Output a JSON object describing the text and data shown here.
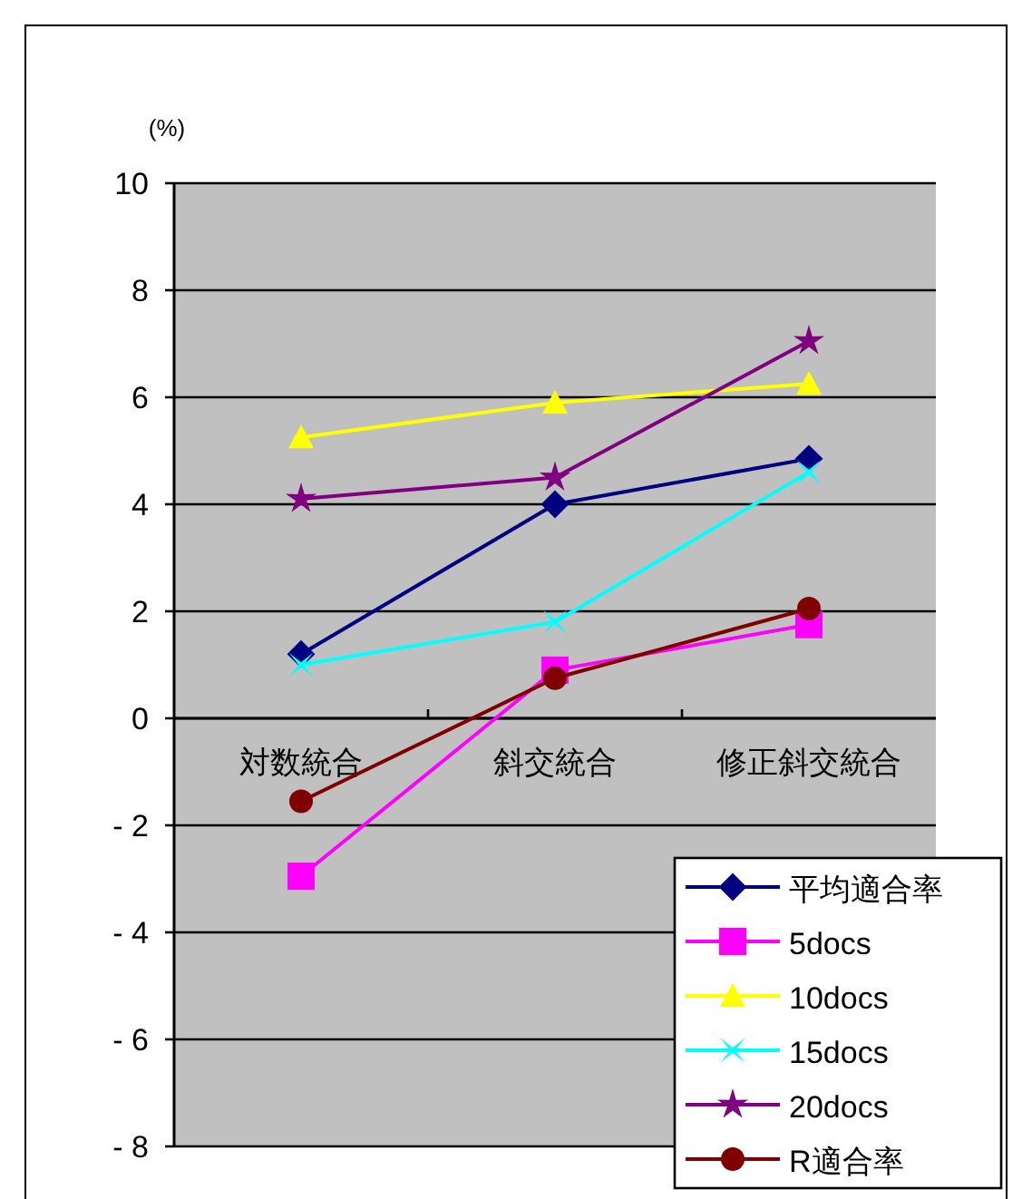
{
  "chart_data": {
    "type": "line",
    "ylabel": "(%)",
    "categories": [
      "対数統合",
      "斜交統合",
      "修正斜交統合"
    ],
    "ylim": [
      -8,
      10
    ],
    "yticks": [
      {
        "value": -8,
        "label": "- 8"
      },
      {
        "value": -6,
        "label": "- 6"
      },
      {
        "value": -4,
        "label": "- 4"
      },
      {
        "value": -2,
        "label": "- 2"
      },
      0,
      2,
      4,
      6,
      8,
      10
    ],
    "grid": "y",
    "legend": "bottom right",
    "series": [
      {
        "name": "平均適合率",
        "color": "#000080",
        "marker": "diamond",
        "values": [
          1.2,
          4.0,
          4.85
        ]
      },
      {
        "name": "5docs",
        "color": "#ff00ff",
        "marker": "square",
        "values": [
          -2.95,
          0.9,
          1.75
        ]
      },
      {
        "name": "10docs",
        "color": "#ffff00",
        "marker": "triangle",
        "values": [
          5.25,
          5.9,
          6.25
        ]
      },
      {
        "name": "15docs",
        "color": "#00ffff",
        "marker": "cross",
        "values": [
          1.0,
          1.8,
          4.6
        ]
      },
      {
        "name": "20docs",
        "color": "#800080",
        "marker": "star",
        "values": [
          4.1,
          4.5,
          7.05
        ]
      },
      {
        "name": "R適合率",
        "color": "#800000",
        "marker": "circle",
        "values": [
          -1.55,
          0.75,
          2.05
        ]
      }
    ]
  }
}
